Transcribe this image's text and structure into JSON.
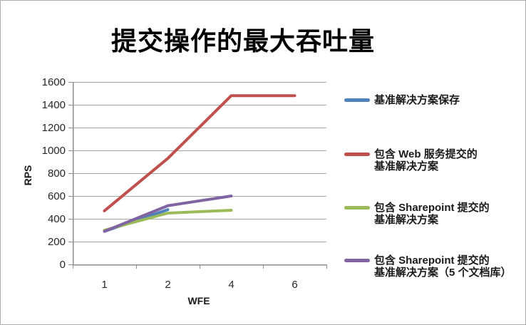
{
  "chart_data": {
    "type": "line",
    "title": "提交操作的最大吞吐量",
    "xlabel": "WFE",
    "ylabel": "RPS",
    "categories": [
      "1",
      "2",
      "4",
      "6"
    ],
    "ylim": [
      0,
      1600
    ],
    "ytick_step": 200,
    "grid": "horizontal",
    "legend_position": "right",
    "background_color": "#ffffff",
    "grid_color": "#a6a6a6",
    "axis_color": "#8c8c8c",
    "tick_label_color": "#262626",
    "series": [
      {
        "name": "基准解决方案保存",
        "color": "#4F81BD",
        "values": [
          290,
          480,
          null,
          null
        ]
      },
      {
        "name": "包含 Web 服务提交的\n基准解决方案",
        "color": "#C0504D",
        "values": [
          470,
          930,
          1480,
          1480
        ]
      },
      {
        "name": "包含 Sharepoint 提交的\n基准解决方案",
        "color": "#9BBB59",
        "values": [
          300,
          450,
          475,
          null
        ]
      },
      {
        "name": "包含 Sharepoint 提交的\n基准解决方案（5 个文档库）",
        "color": "#8064A2",
        "values": [
          290,
          515,
          600,
          null
        ]
      }
    ]
  }
}
